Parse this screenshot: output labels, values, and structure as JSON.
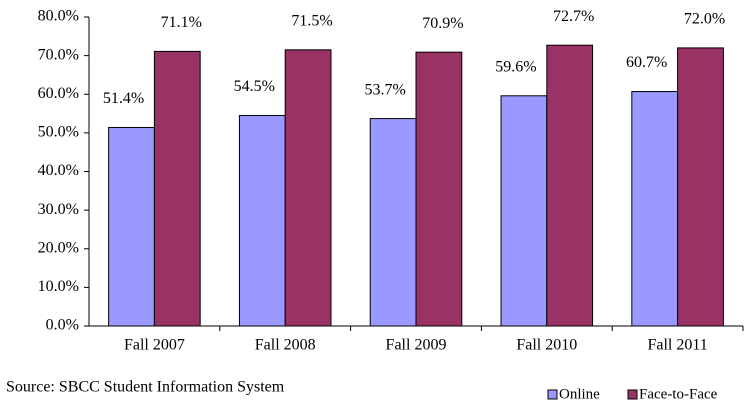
{
  "chart_data": {
    "type": "bar",
    "categories": [
      "Fall 2007",
      "Fall 2008",
      "Fall 2009",
      "Fall 2010",
      "Fall 2011"
    ],
    "series": [
      {
        "name": "Online",
        "color": "#9999ff",
        "values": [
          51.4,
          54.5,
          53.7,
          59.6,
          60.7
        ],
        "value_labels": [
          "51.4%",
          "54.5%",
          "53.7%",
          "59.6%",
          "60.7%"
        ]
      },
      {
        "name": "Face-to-Face",
        "color": "#993366",
        "values": [
          71.1,
          71.5,
          70.9,
          72.7,
          72.0
        ],
        "value_labels": [
          "71.1%",
          "71.5%",
          "70.9%",
          "72.7%",
          "72.0%"
        ]
      }
    ],
    "ylim": [
      0,
      80
    ],
    "yticks": [
      {
        "value": 0,
        "label": "0.0%"
      },
      {
        "value": 10,
        "label": "10.0%"
      },
      {
        "value": 20,
        "label": "20.0%"
      },
      {
        "value": 30,
        "label": "30.0%"
      },
      {
        "value": 40,
        "label": "40.0%"
      },
      {
        "value": 50,
        "label": "50.0%"
      },
      {
        "value": 60,
        "label": "60.0%"
      },
      {
        "value": 70,
        "label": "70.0%"
      },
      {
        "value": 80,
        "label": "80.0%"
      }
    ],
    "grid": false,
    "legend": "bottom-right",
    "annotation": "Source: SBCC Student Information System"
  }
}
